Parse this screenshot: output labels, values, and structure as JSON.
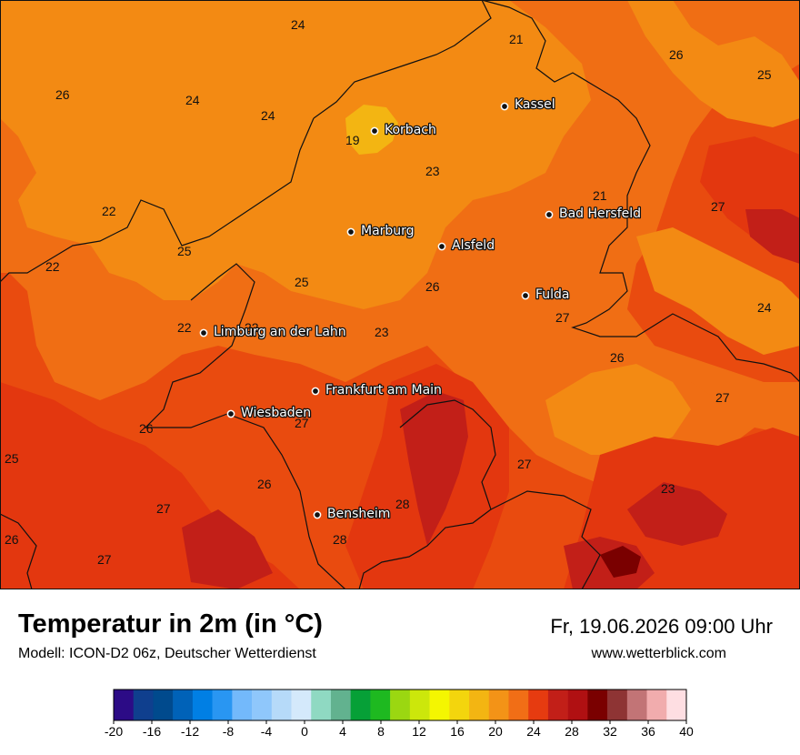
{
  "title": "Temperatur in 2m (in °C)",
  "model": "Modell: ICON-D2 06z, Deutscher Wetterdienst",
  "datetime": "Fr, 19.06.2026 09:00 Uhr",
  "website": "www.wetterblick.com",
  "cities": [
    {
      "name": "Kassel"
    },
    {
      "name": "Korbach"
    },
    {
      "name": "Bad Hersfeld"
    },
    {
      "name": "Marburg"
    },
    {
      "name": "Alsfeld"
    },
    {
      "name": "Fulda"
    },
    {
      "name": "Limburg an der Lahn"
    },
    {
      "name": "Frankfurt am Main"
    },
    {
      "name": "Wiesbaden"
    },
    {
      "name": "Bensheim"
    }
  ],
  "temperature_labels": [
    "24",
    "21",
    "26",
    "25",
    "26",
    "24",
    "24",
    "19",
    "23",
    "21",
    "27",
    "22",
    "25",
    "22",
    "25",
    "26",
    "22",
    "22",
    "23",
    "27",
    "24",
    "26",
    "27",
    "26",
    "27",
    "25",
    "27",
    "26",
    "23",
    "27",
    "28",
    "26",
    "28",
    "27"
  ],
  "legend": {
    "ticks": [
      "-20",
      "-16",
      "-12",
      "-8",
      "-4",
      "0",
      "4",
      "8",
      "12",
      "16",
      "20",
      "24",
      "28",
      "32",
      "36",
      "40"
    ],
    "colors": [
      "#2c0b86",
      "#0f3f8e",
      "#004a8d",
      "#0062b8",
      "#007fe4",
      "#2996f2",
      "#73b9fb",
      "#8fc7fb",
      "#b6daf9",
      "#d4e9fb",
      "#8fd9c2",
      "#62b28f",
      "#06a037",
      "#1eb920",
      "#9bd711",
      "#cce70b",
      "#f4f601",
      "#f3d50d",
      "#f3b512",
      "#f39317",
      "#f16e16",
      "#e63b10",
      "#c21f18",
      "#b01012",
      "#7a0000",
      "#8e3434",
      "#c27476",
      "#f1acad",
      "#fedee2"
    ]
  }
}
